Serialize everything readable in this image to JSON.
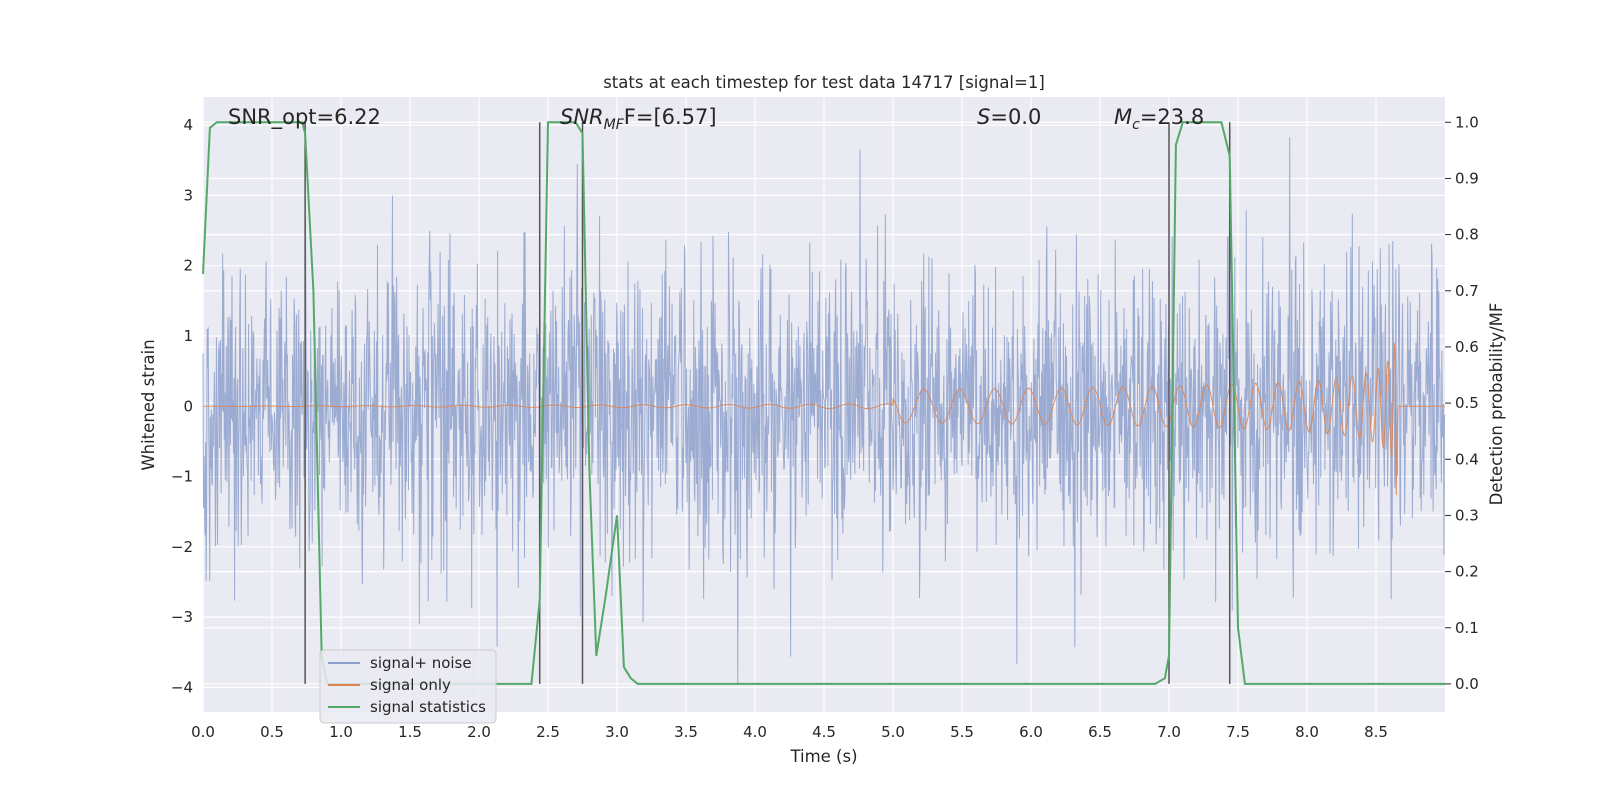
{
  "chart_data": {
    "type": "line",
    "title": "stats at each timestep for test data 14717 [signal=1]",
    "xlabel": "Time (s)",
    "ylabel": "Whitened strain",
    "ylabel_right": "Detection probability/MF",
    "xlim": [
      0.0,
      9.0
    ],
    "ylim": [
      -4.35,
      4.4
    ],
    "ylim_right": [
      -0.05,
      1.045
    ],
    "x_ticks": [
      "0.0",
      "0.5",
      "1.0",
      "1.5",
      "2.0",
      "2.5",
      "3.0",
      "3.5",
      "4.0",
      "4.5",
      "5.0",
      "5.5",
      "6.0",
      "6.5",
      "7.0",
      "7.5",
      "8.0",
      "8.5"
    ],
    "y_ticks": [
      "4",
      "3",
      "2",
      "1",
      "0",
      "−1",
      "−2",
      "−3",
      "−4"
    ],
    "y_ticks_right": [
      "1.0",
      "0.9",
      "0.8",
      "0.7",
      "0.6",
      "0.5",
      "0.4",
      "0.3",
      "0.2",
      "0.1",
      "0.0"
    ],
    "grid": true,
    "legend_position": "lower-left",
    "annotations": {
      "snr_opt": "SNR_opt=6.22",
      "snr_mf_main": "SNR",
      "snr_mf_sub": "MF",
      "snr_mf_rest": "F=[6.57]",
      "s_italic": "S",
      "s_rest": "=0.0",
      "mc_main": "M",
      "mc_sub": "c",
      "mc_rest": "=23.8"
    },
    "vertical_lines_x": [
      0.74,
      2.44,
      2.75,
      7.0,
      7.44
    ],
    "series": [
      {
        "name": "signal+ noise",
        "color": "#8da0cb",
        "axis": "left",
        "description_values": {
          "typical_range": [
            -1.6,
            1.6
          ],
          "peak_range": [
            -3.8,
            3.8
          ],
          "x_range": [
            0.0,
            9.0
          ]
        }
      },
      {
        "name": "signal only",
        "color": "#dd8452",
        "axis": "left",
        "chirp": {
          "start_x": 5.0,
          "merger_x": 8.65,
          "peak_amplitude": 1.3
        }
      },
      {
        "name": "signal statistics",
        "color": "#55a868",
        "axis": "right",
        "x": [
          0.0,
          0.05,
          0.1,
          0.5,
          0.72,
          0.74,
          0.8,
          0.86,
          0.9,
          2.2,
          2.38,
          2.44,
          2.5,
          2.7,
          2.75,
          2.8,
          2.85,
          2.92,
          3.0,
          3.05,
          3.1,
          3.15,
          4.0,
          6.9,
          6.97,
          7.0,
          7.05,
          7.1,
          7.2,
          7.38,
          7.44,
          7.5,
          7.55,
          7.6,
          9.0
        ],
        "y": [
          0.73,
          0.99,
          1.0,
          1.0,
          1.0,
          0.98,
          0.7,
          0.05,
          0.0,
          0.0,
          0.0,
          0.15,
          1.0,
          1.0,
          0.98,
          0.38,
          0.05,
          0.16,
          0.3,
          0.03,
          0.01,
          0.0,
          0.0,
          0.0,
          0.01,
          0.05,
          0.96,
          1.0,
          1.0,
          1.0,
          0.94,
          0.1,
          0.0,
          0.0,
          0.0
        ]
      }
    ]
  }
}
